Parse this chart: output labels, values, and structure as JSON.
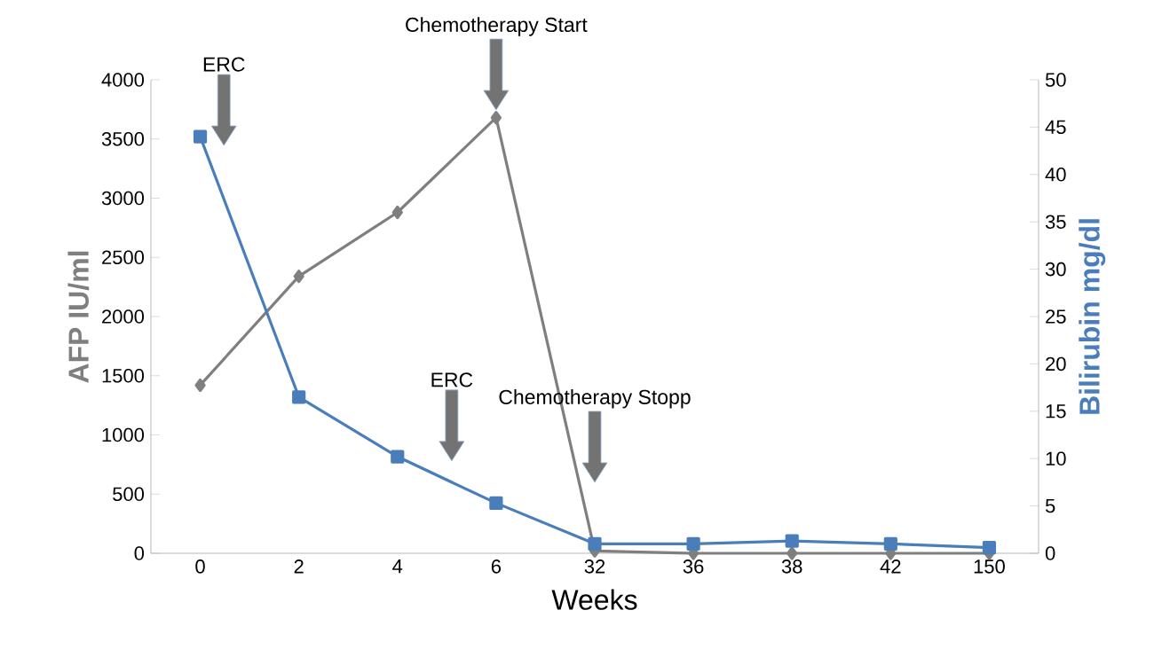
{
  "chart_data": {
    "type": "line",
    "xlabel": "Weeks",
    "ylabel": "AFP IU/ml",
    "y2label": "Bilirubin mg/dl",
    "categories": [
      "0",
      "2",
      "4",
      "6",
      "32",
      "36",
      "38",
      "42",
      "150"
    ],
    "series": [
      {
        "color": "#7f7f7f",
        "marker": "diamond",
        "axis": "y",
        "values": [
          1420,
          2340,
          2880,
          3680,
          20,
          0,
          0,
          0,
          0
        ]
      },
      {
        "color": "#4a7ebb",
        "marker": "square",
        "axis": "y2",
        "values": [
          44,
          16.5,
          10.2,
          5.3,
          1,
          1,
          1.3,
          1,
          0.6
        ]
      }
    ],
    "ylim": [
      0,
      4000
    ],
    "yticks": [
      0,
      500,
      1000,
      1500,
      2000,
      2500,
      3000,
      3500,
      4000
    ],
    "y2lim": [
      0,
      50
    ],
    "y2ticks": [
      0,
      5,
      10,
      15,
      20,
      25,
      30,
      35,
      40,
      45,
      50
    ],
    "annotations": [
      "ERC",
      "Chemotherapy Start",
      "ERC",
      "Chemotherapy Stopp"
    ]
  }
}
